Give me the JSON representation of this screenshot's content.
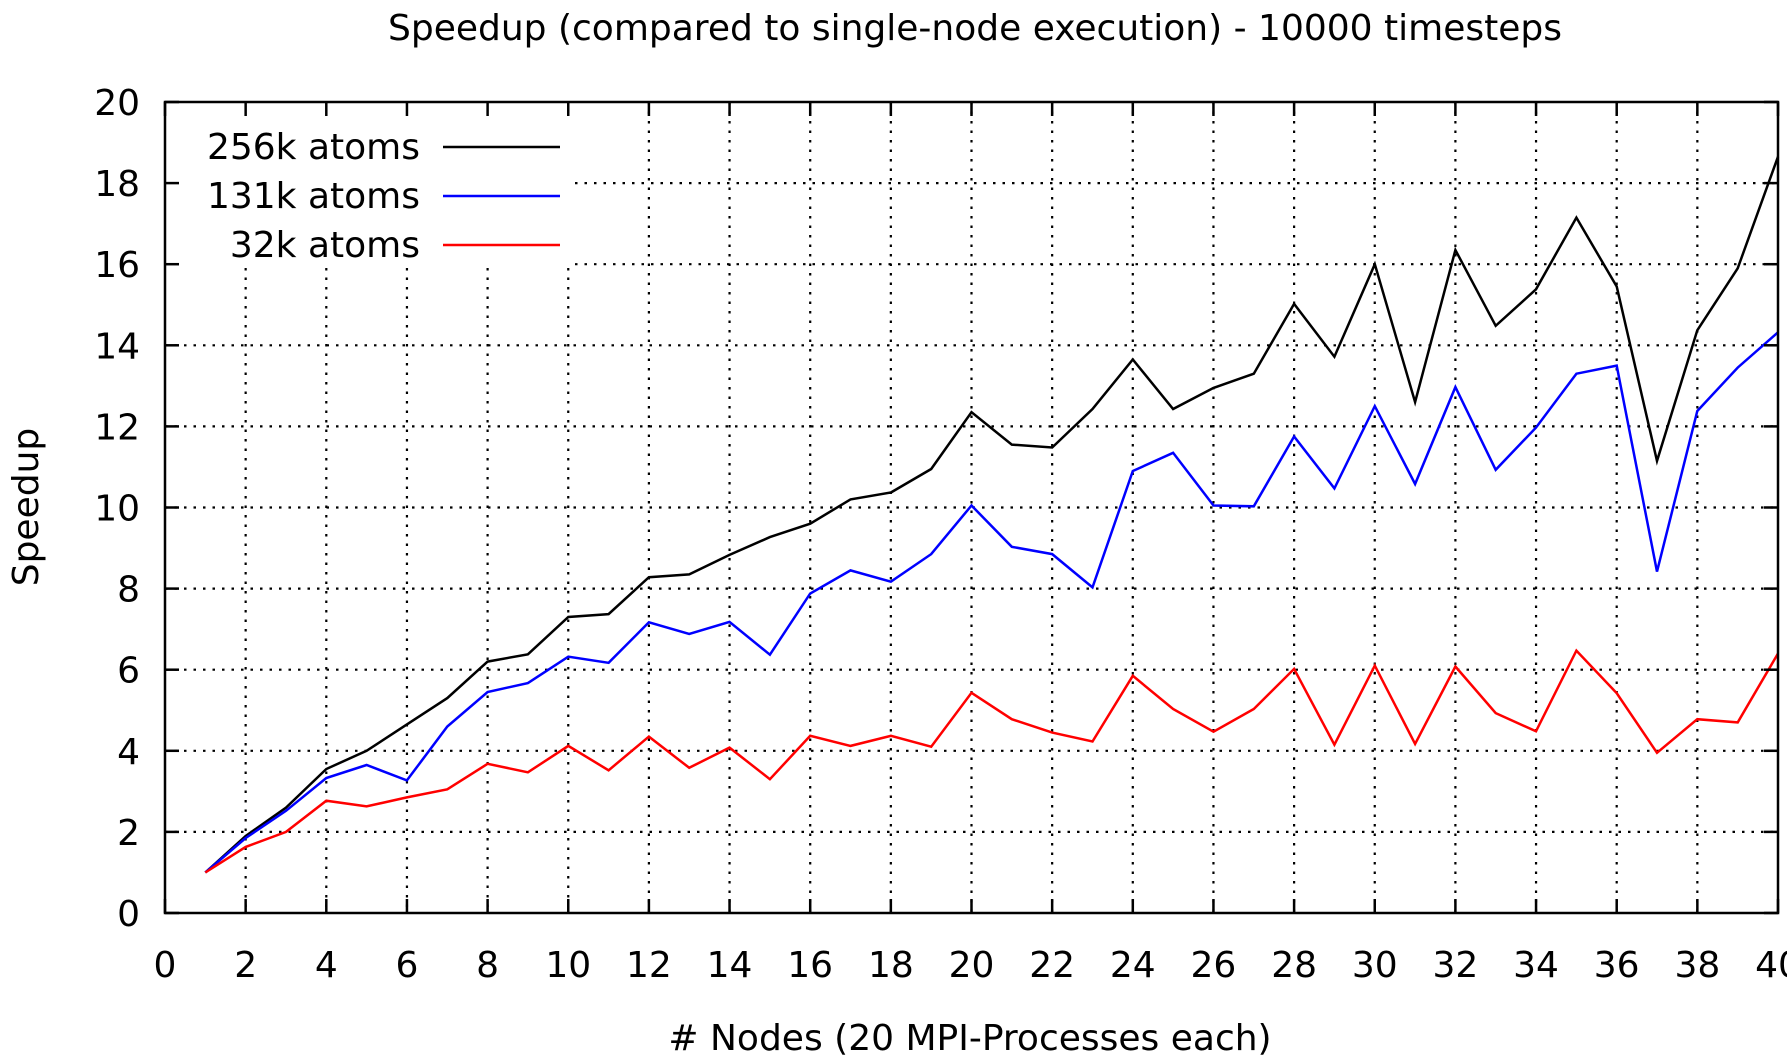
{
  "chart_data": {
    "type": "line",
    "title": "Speedup (compared to single-node execution) - 10000 timesteps",
    "xlabel": "# Nodes (20 MPI-Processes each)",
    "ylabel": "Speedup",
    "xlim": [
      0,
      40
    ],
    "ylim": [
      0,
      20
    ],
    "x_ticks": [
      0,
      2,
      4,
      6,
      8,
      10,
      12,
      14,
      16,
      18,
      20,
      22,
      24,
      26,
      28,
      30,
      32,
      34,
      36,
      38,
      40
    ],
    "y_ticks": [
      0,
      2,
      4,
      6,
      8,
      10,
      12,
      14,
      16,
      18,
      20
    ],
    "grid": true,
    "legend_position": "top-left",
    "x": [
      1,
      2,
      3,
      4,
      5,
      6,
      7,
      8,
      9,
      10,
      11,
      12,
      13,
      14,
      15,
      16,
      17,
      18,
      19,
      20,
      21,
      22,
      23,
      24,
      25,
      26,
      27,
      28,
      29,
      30,
      31,
      32,
      33,
      34,
      35,
      36,
      37,
      38,
      39,
      40
    ],
    "series": [
      {
        "name": "256k atoms",
        "color": "#000000",
        "values": [
          1.0,
          1.9,
          2.6,
          3.55,
          4.0,
          4.65,
          5.3,
          6.2,
          6.38,
          7.3,
          7.37,
          8.28,
          8.35,
          8.83,
          9.27,
          9.6,
          10.2,
          10.37,
          10.95,
          12.35,
          11.55,
          11.48,
          12.43,
          13.65,
          12.43,
          12.95,
          13.3,
          15.02,
          13.72,
          16.0,
          12.6,
          16.35,
          14.48,
          15.38,
          17.15,
          15.45,
          11.15,
          14.37,
          15.9,
          18.65
        ]
      },
      {
        "name": "131k atoms",
        "color": "#0000ff",
        "values": [
          1.0,
          1.85,
          2.52,
          3.33,
          3.65,
          3.27,
          4.6,
          5.45,
          5.67,
          6.32,
          6.17,
          7.17,
          6.88,
          7.18,
          6.37,
          7.88,
          8.45,
          8.17,
          8.85,
          10.05,
          9.03,
          8.85,
          8.03,
          10.9,
          11.35,
          10.05,
          10.03,
          11.75,
          10.47,
          12.5,
          10.58,
          12.97,
          10.93,
          11.97,
          13.3,
          13.5,
          8.42,
          12.38,
          13.45,
          14.32
        ]
      },
      {
        "name": "32k atoms",
        "color": "#ff0000",
        "values": [
          1.0,
          1.63,
          2.0,
          2.77,
          2.63,
          2.85,
          3.05,
          3.68,
          3.47,
          4.12,
          3.52,
          4.35,
          3.58,
          4.08,
          3.3,
          4.37,
          4.12,
          4.37,
          4.1,
          5.43,
          4.78,
          4.45,
          4.23,
          5.85,
          5.03,
          4.47,
          5.03,
          6.02,
          4.15,
          6.1,
          4.17,
          6.08,
          4.93,
          4.48,
          6.47,
          5.42,
          3.95,
          4.78,
          4.7,
          6.4
        ]
      }
    ]
  }
}
